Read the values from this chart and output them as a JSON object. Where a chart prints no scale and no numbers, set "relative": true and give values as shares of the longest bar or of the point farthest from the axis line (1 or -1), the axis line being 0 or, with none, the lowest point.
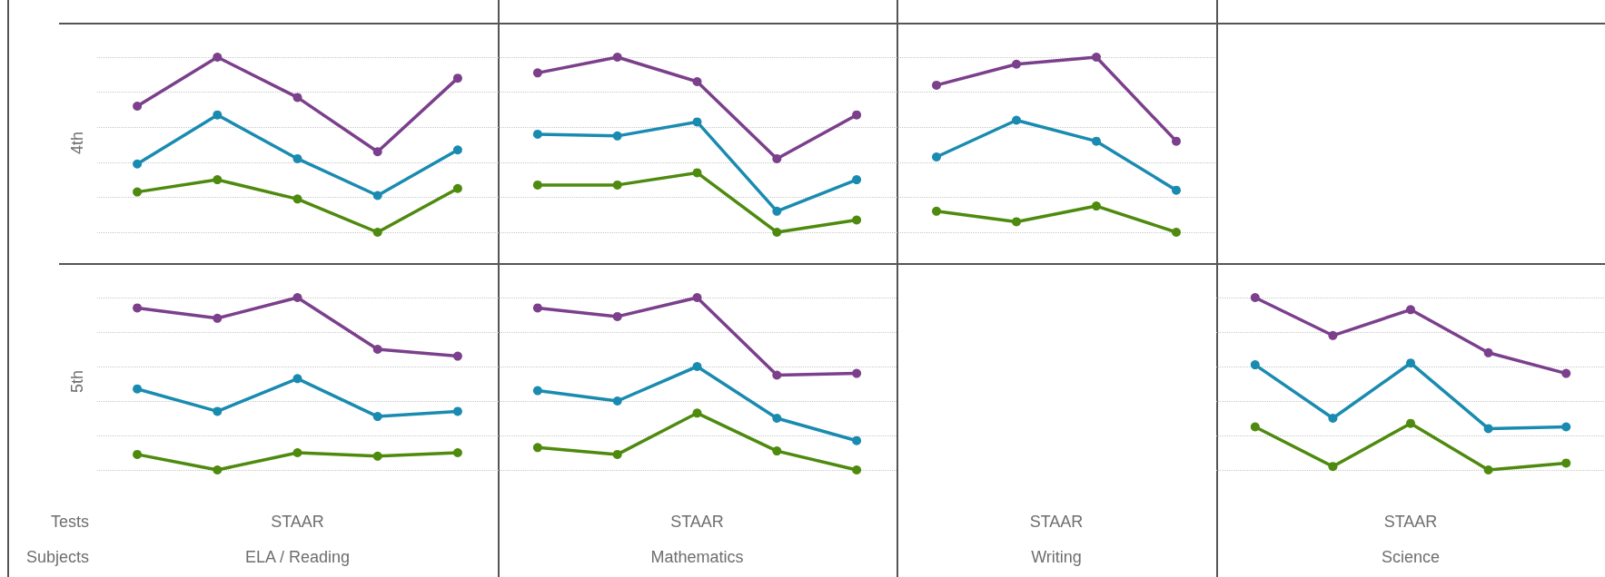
{
  "chart_data": [
    {
      "type": "line",
      "ylabel": "4th",
      "relative": true,
      "grid": "y",
      "marker": "circle",
      "line_style": "solid",
      "categories": [
        null,
        null,
        null,
        null,
        null
      ],
      "series": [
        {
          "color": "#7b3f8c",
          "values": [
            0.72,
            1,
            0.77,
            0.46,
            0.88
          ]
        },
        {
          "color": "#1a8bb0",
          "values": [
            0.39,
            0.67,
            0.42,
            0.21,
            0.47
          ]
        },
        {
          "color": "#4e8a0e",
          "values": [
            0.23,
            0.3,
            0.19,
            0,
            0.25
          ]
        }
      ]
    },
    {
      "type": "line",
      "relative": true,
      "grid": "y",
      "marker": "circle",
      "line_style": "solid",
      "categories": [
        null,
        null,
        null,
        null,
        null
      ],
      "series": [
        {
          "color": "#7b3f8c",
          "values": [
            0.91,
            1,
            0.86,
            0.42,
            0.67
          ]
        },
        {
          "color": "#1a8bb0",
          "values": [
            0.56,
            0.55,
            0.63,
            0.12,
            0.3
          ]
        },
        {
          "color": "#4e8a0e",
          "values": [
            0.27,
            0.27,
            0.34,
            0,
            0.07
          ]
        }
      ]
    },
    {
      "type": "line",
      "subtitle": "STAAR",
      "xlabel": "Writing",
      "relative": true,
      "grid": "y",
      "marker": "circle",
      "line_style": "solid",
      "categories": [
        null,
        null,
        null,
        null
      ],
      "series": [
        {
          "color": "#7b3f8c",
          "values": [
            0.84,
            0.96,
            1,
            0.52
          ]
        },
        {
          "color": "#1a8bb0",
          "values": [
            0.43,
            0.64,
            0.52,
            0.24
          ]
        },
        {
          "color": "#4e8a0e",
          "values": [
            0.12,
            0.06,
            0.15,
            0
          ]
        }
      ]
    },
    {
      "type": "line",
      "ylabel": "5th",
      "subtitle": "STAAR",
      "xlabel": "ELA / Reading",
      "annotations": [
        "Tests",
        "Subjects"
      ],
      "relative": true,
      "grid": "y",
      "marker": "circle",
      "line_style": "solid",
      "categories": [
        null,
        null,
        null,
        null,
        null
      ],
      "series": [
        {
          "color": "#7b3f8c",
          "values": [
            0.94,
            0.88,
            1,
            0.7,
            0.66
          ]
        },
        {
          "color": "#1a8bb0",
          "values": [
            0.47,
            0.34,
            0.53,
            0.31,
            0.34
          ]
        },
        {
          "color": "#4e8a0e",
          "values": [
            0.09,
            0,
            0.1,
            0.08,
            0.1
          ]
        }
      ]
    },
    {
      "type": "line",
      "subtitle": "STAAR",
      "xlabel": "Mathematics",
      "relative": true,
      "grid": "y",
      "marker": "circle",
      "line_style": "solid",
      "categories": [
        null,
        null,
        null,
        null,
        null
      ],
      "series": [
        {
          "color": "#7b3f8c",
          "values": [
            0.94,
            0.89,
            1,
            0.55,
            0.56
          ]
        },
        {
          "color": "#1a8bb0",
          "values": [
            0.46,
            0.4,
            0.6,
            0.3,
            0.17
          ]
        },
        {
          "color": "#4e8a0e",
          "values": [
            0.13,
            0.09,
            0.33,
            0.11,
            0
          ]
        }
      ]
    },
    {
      "type": "line",
      "subtitle": "STAAR",
      "xlabel": "Science",
      "relative": true,
      "grid": "y",
      "marker": "circle",
      "line_style": "solid",
      "categories": [
        null,
        null,
        null,
        null,
        null
      ],
      "series": [
        {
          "color": "#7b3f8c",
          "values": [
            1,
            0.78,
            0.93,
            0.68,
            0.56
          ]
        },
        {
          "color": "#1a8bb0",
          "values": [
            0.61,
            0.3,
            0.62,
            0.24,
            0.25
          ]
        },
        {
          "color": "#4e8a0e",
          "values": [
            0.25,
            0.02,
            0.27,
            0,
            0.04
          ]
        }
      ]
    }
  ]
}
